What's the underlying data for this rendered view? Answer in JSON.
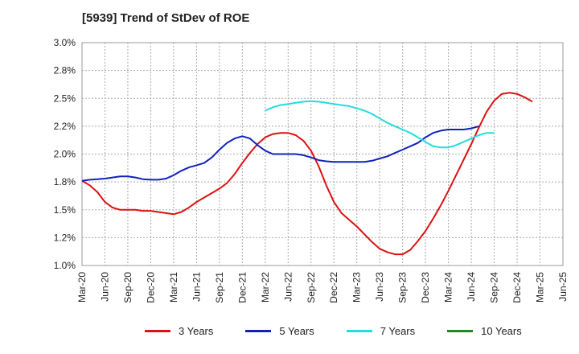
{
  "chart_data": {
    "type": "line",
    "title": "[5939]  Trend of StDev of ROE",
    "y_tick_labels": [
      "1.0%",
      "1.2%",
      "1.5%",
      "1.8%",
      "2.0%",
      "2.2%",
      "2.5%",
      "2.8%",
      "3.0%"
    ],
    "x_tick_labels": [
      "Mar-20",
      "Jun-20",
      "Sep-20",
      "Dec-20",
      "Mar-21",
      "Jun-21",
      "Sep-21",
      "Dec-21",
      "Mar-22",
      "Jun-22",
      "Sep-22",
      "Dec-22",
      "Mar-23",
      "Jun-23",
      "Sep-23",
      "Dec-23",
      "Mar-24",
      "Jun-24",
      "Sep-24",
      "Dec-24",
      "Mar-25",
      "Jun-25"
    ],
    "ylim": [
      1.0,
      3.0
    ],
    "grid": true,
    "legend_position": "bottom",
    "series": [
      {
        "name": "3 Years",
        "color": "#dd1111",
        "x": [
          0,
          1,
          2,
          3,
          4,
          5,
          6,
          7,
          8,
          9,
          10,
          11,
          12,
          13,
          14,
          15,
          16,
          17,
          18,
          19,
          20,
          21,
          22,
          23,
          24,
          25,
          26,
          27,
          28,
          29,
          30,
          31,
          32,
          33,
          34,
          35,
          36,
          37,
          38,
          39,
          40,
          41,
          42,
          43,
          44,
          45,
          46,
          47,
          48,
          49,
          50,
          51,
          52,
          53,
          54,
          55,
          56,
          57,
          58,
          59,
          60
        ],
        "values": [
          1.76,
          1.72,
          1.66,
          1.57,
          1.52,
          1.5,
          1.5,
          1.5,
          1.49,
          1.49,
          1.48,
          1.47,
          1.46,
          1.48,
          1.52,
          1.57,
          1.61,
          1.65,
          1.69,
          1.74,
          1.82,
          1.92,
          2.01,
          2.09,
          2.15,
          2.18,
          2.19,
          2.19,
          2.17,
          2.12,
          2.03,
          1.89,
          1.72,
          1.57,
          1.47,
          1.41,
          1.35,
          1.28,
          1.21,
          1.15,
          1.12,
          1.1,
          1.1,
          1.14,
          1.22,
          1.31,
          1.42,
          1.54,
          1.67,
          1.81,
          1.95,
          2.09,
          2.24,
          2.38,
          2.48,
          2.54,
          2.55,
          2.54,
          2.51,
          2.47,
          null
        ]
      },
      {
        "name": "5 Years",
        "color": "#1122bb",
        "x": [
          0,
          1,
          2,
          3,
          4,
          5,
          6,
          7,
          8,
          9,
          10,
          11,
          12,
          13,
          14,
          15,
          16,
          17,
          18,
          19,
          20,
          21,
          22,
          23,
          24,
          25,
          26,
          27,
          28,
          29,
          30,
          31,
          32,
          33,
          34,
          35,
          36,
          37,
          38,
          39,
          40,
          41,
          42,
          43,
          44,
          45,
          46,
          47,
          48,
          49,
          50,
          51,
          52,
          53,
          54,
          55,
          56,
          57,
          58,
          59,
          60
        ],
        "values": [
          1.76,
          1.77,
          1.775,
          1.78,
          1.79,
          1.8,
          1.8,
          1.79,
          1.775,
          1.77,
          1.77,
          1.78,
          1.81,
          1.85,
          1.88,
          1.9,
          1.92,
          1.97,
          2.04,
          2.1,
          2.14,
          2.16,
          2.14,
          2.08,
          2.03,
          2.0,
          2.0,
          2.0,
          2.0,
          1.99,
          1.97,
          1.945,
          1.935,
          1.93,
          1.93,
          1.93,
          1.93,
          1.93,
          1.94,
          1.96,
          1.98,
          2.01,
          2.04,
          2.07,
          2.1,
          2.15,
          2.19,
          2.21,
          2.22,
          2.22,
          2.22,
          2.23,
          2.25,
          null,
          null,
          null,
          null,
          null,
          null,
          null,
          null
        ]
      },
      {
        "name": "7 Years",
        "color": "#22dddd",
        "x": [
          0,
          1,
          2,
          3,
          4,
          5,
          6,
          7,
          8,
          9,
          10,
          11,
          12,
          13,
          14,
          15,
          16,
          17,
          18,
          19,
          20,
          21,
          22,
          23,
          24,
          25,
          26,
          27,
          28,
          29,
          30,
          31,
          32,
          33,
          34,
          35,
          36,
          37,
          38,
          39,
          40,
          41,
          42,
          43,
          44,
          45,
          46,
          47,
          48,
          49,
          50,
          51,
          52,
          53,
          54,
          55,
          56,
          57,
          58,
          59,
          60
        ],
        "values": [
          null,
          null,
          null,
          null,
          null,
          null,
          null,
          null,
          null,
          null,
          null,
          null,
          null,
          null,
          null,
          null,
          null,
          null,
          null,
          null,
          null,
          null,
          null,
          null,
          2.39,
          2.42,
          2.44,
          2.45,
          2.46,
          2.47,
          2.475,
          2.47,
          2.46,
          2.45,
          2.44,
          2.43,
          2.41,
          2.39,
          2.36,
          2.32,
          2.28,
          2.25,
          2.22,
          2.19,
          2.15,
          2.11,
          2.07,
          2.06,
          2.06,
          2.08,
          2.11,
          2.14,
          2.17,
          2.19,
          2.19,
          null,
          null,
          null,
          null,
          null,
          null
        ]
      },
      {
        "name": "10 Years",
        "color": "#228822",
        "x": [],
        "values": []
      }
    ]
  }
}
